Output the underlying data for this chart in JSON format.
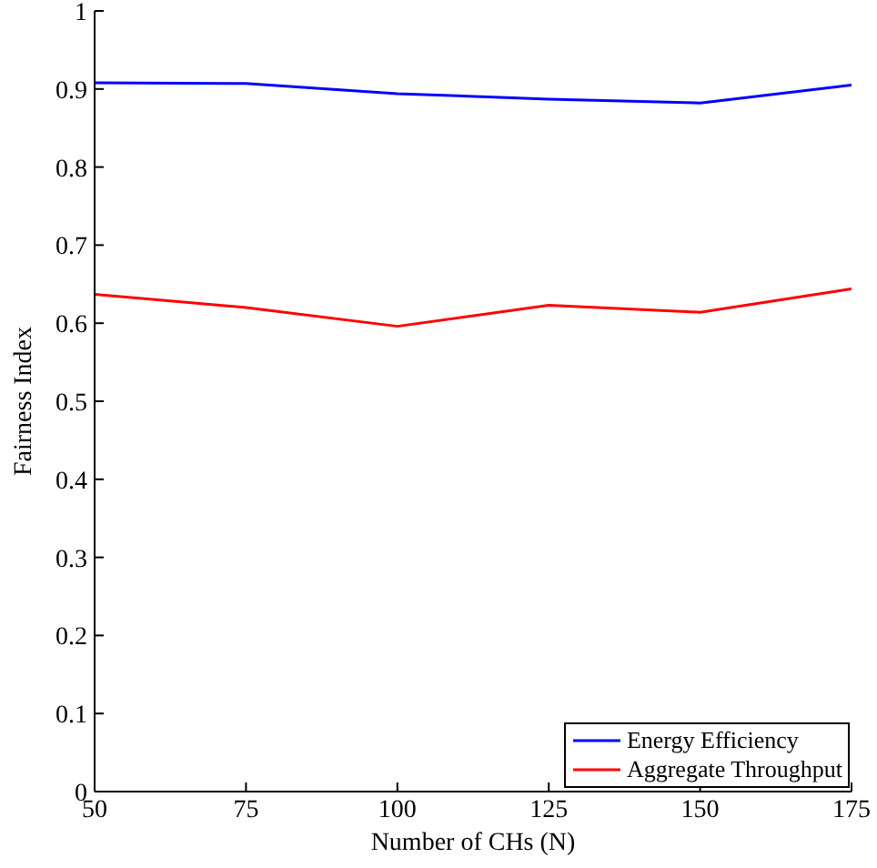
{
  "chart_data": {
    "type": "line",
    "xlabel": "Number of CHs (N)",
    "ylabel": "Fairness Index",
    "x": [
      50,
      75,
      100,
      125,
      150,
      175
    ],
    "series": [
      {
        "name": "Energy Efficiency",
        "color": "#0000ff",
        "values": [
          0.908,
          0.907,
          0.894,
          0.887,
          0.882,
          0.905
        ]
      },
      {
        "name": "Aggregate Throughput",
        "color": "#ff0000",
        "values": [
          0.637,
          0.62,
          0.596,
          0.623,
          0.614,
          0.644
        ]
      }
    ],
    "xlim": [
      50,
      175
    ],
    "xticks": [
      50,
      75,
      100,
      125,
      150,
      175
    ],
    "ylim": [
      0,
      1
    ],
    "yticks": [
      0,
      0.1,
      0.2,
      0.3,
      0.4,
      0.5,
      0.6,
      0.7,
      0.8,
      0.9,
      1
    ],
    "grid": false,
    "legend": "bottom right",
    "marker": "none",
    "line_style": "solid"
  }
}
